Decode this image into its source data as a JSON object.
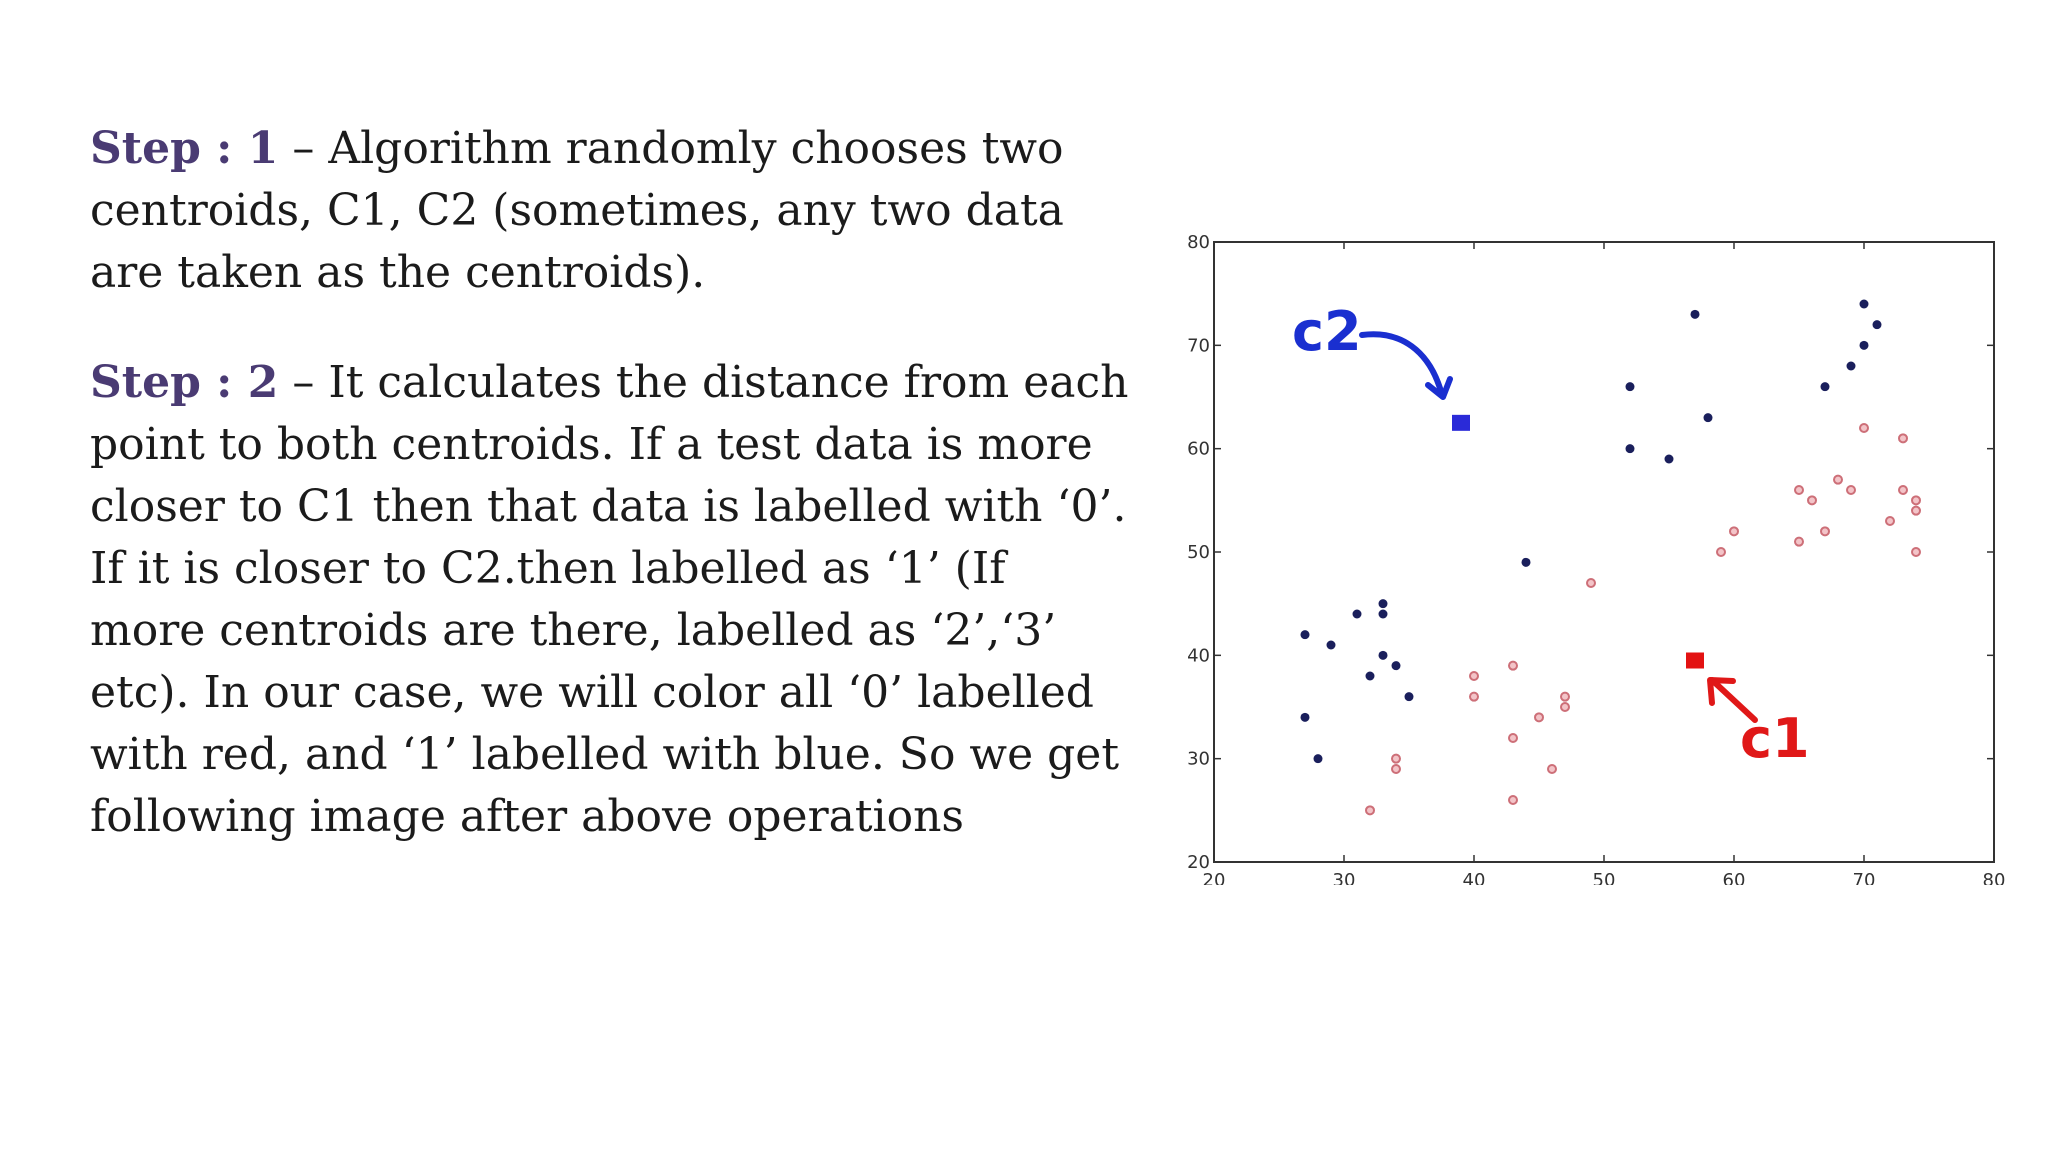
{
  "steps": [
    {
      "label": "Step : 1",
      "text": " – Algorithm randomly chooses two centroids, C1, C2 (sometimes, any two data are taken as the centroids)."
    },
    {
      "label": "Step : 2",
      "text": " – It calculates the distance from each point to both centroids. If a test data is more closer to C1 then that data is labelled with ‘0’. If it is closer to C2.then labelled as ‘1’ (If more centroids are there, labelled as ‘2’,‘3’ etc). In our case, we will color all ‘0’ labelled with red, and ‘1’ labelled with blue. So we get following image after above operations"
    }
  ],
  "colors": {
    "step_label": "#4a3b73",
    "cluster_dark": "#1a1f5c",
    "cluster_red": "#cd6f78",
    "centroid_c2": "#2a2ad8",
    "centroid_c1": "#e31212",
    "annotation_c2": "#1a2fd0",
    "annotation_c1": "#e01818"
  },
  "chart_data": {
    "type": "scatter",
    "title": "",
    "xlabel": "",
    "ylabel": "",
    "xlim": [
      20,
      80
    ],
    "ylim": [
      20,
      80
    ],
    "xticks": [
      "20",
      "30",
      "40",
      "50",
      "60",
      "70",
      "80"
    ],
    "yticks": [
      "20",
      "30",
      "40",
      "50",
      "60",
      "70",
      "80"
    ],
    "grid": false,
    "series": [
      {
        "color": "#1a1f5c",
        "points": [
          [
            27,
            42
          ],
          [
            27,
            34
          ],
          [
            28,
            30
          ],
          [
            29,
            41
          ],
          [
            31,
            44
          ],
          [
            32,
            38
          ],
          [
            33,
            45
          ],
          [
            33,
            44
          ],
          [
            33,
            40
          ],
          [
            34,
            39
          ],
          [
            35,
            36
          ],
          [
            44,
            49
          ],
          [
            52,
            66
          ],
          [
            52,
            60
          ],
          [
            55,
            59
          ],
          [
            57,
            73
          ],
          [
            58,
            63
          ],
          [
            67,
            66
          ],
          [
            69,
            68
          ],
          [
            70,
            70
          ],
          [
            70,
            74
          ],
          [
            71,
            72
          ]
        ]
      },
      {
        "color": "#cd6f78",
        "points": [
          [
            32,
            25
          ],
          [
            34,
            30
          ],
          [
            34,
            29
          ],
          [
            40,
            38
          ],
          [
            40,
            36
          ],
          [
            43,
            39
          ],
          [
            43,
            32
          ],
          [
            43,
            26
          ],
          [
            45,
            34
          ],
          [
            46,
            29
          ],
          [
            47,
            36
          ],
          [
            47,
            35
          ],
          [
            49,
            47
          ],
          [
            59,
            50
          ],
          [
            60,
            52
          ],
          [
            65,
            56
          ],
          [
            65,
            51
          ],
          [
            66,
            55
          ],
          [
            67,
            52
          ],
          [
            68,
            57
          ],
          [
            69,
            56
          ],
          [
            70,
            62
          ],
          [
            72,
            53
          ],
          [
            73,
            61
          ],
          [
            73,
            56
          ],
          [
            74,
            55
          ],
          [
            74,
            54
          ],
          [
            74,
            50
          ]
        ]
      }
    ],
    "centroids": [
      {
        "name": "c2",
        "x": 39,
        "y": 62.5,
        "color": "#2a2ad8"
      },
      {
        "name": "c1",
        "x": 57,
        "y": 39.5,
        "color": "#e31212"
      }
    ],
    "annotations": [
      {
        "text": "c2",
        "color": "#1a2fd0"
      },
      {
        "text": "c1",
        "color": "#e01818"
      }
    ]
  }
}
